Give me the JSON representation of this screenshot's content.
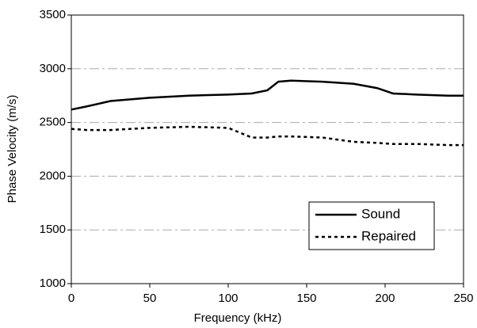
{
  "chart_data": {
    "type": "line",
    "x_label": "Frequency (kHz)",
    "y_label": "Phase Velocity (m/s)",
    "x": [
      0,
      10,
      25,
      50,
      75,
      100,
      115,
      125,
      132,
      140,
      160,
      180,
      195,
      205,
      220,
      240,
      250
    ],
    "series": [
      {
        "name": "Sound",
        "color": "#000000",
        "style": "solid",
        "values": [
          2620,
          2650,
          2700,
          2730,
          2750,
          2760,
          2770,
          2800,
          2880,
          2890,
          2880,
          2860,
          2820,
          2770,
          2760,
          2750,
          2750
        ]
      },
      {
        "name": "Repaired",
        "color": "#000000",
        "style": "dotted",
        "values": [
          2440,
          2430,
          2430,
          2450,
          2460,
          2450,
          2360,
          2360,
          2370,
          2370,
          2360,
          2320,
          2310,
          2300,
          2300,
          2290,
          2290
        ]
      }
    ],
    "xlim": [
      0,
      250
    ],
    "xticks": [
      0,
      50,
      100,
      150,
      200,
      250
    ],
    "ylim": [
      1000,
      3500
    ],
    "yticks": [
      1000,
      1500,
      2000,
      2500,
      3000,
      3500
    ],
    "grid": true,
    "legend": "lower right"
  }
}
